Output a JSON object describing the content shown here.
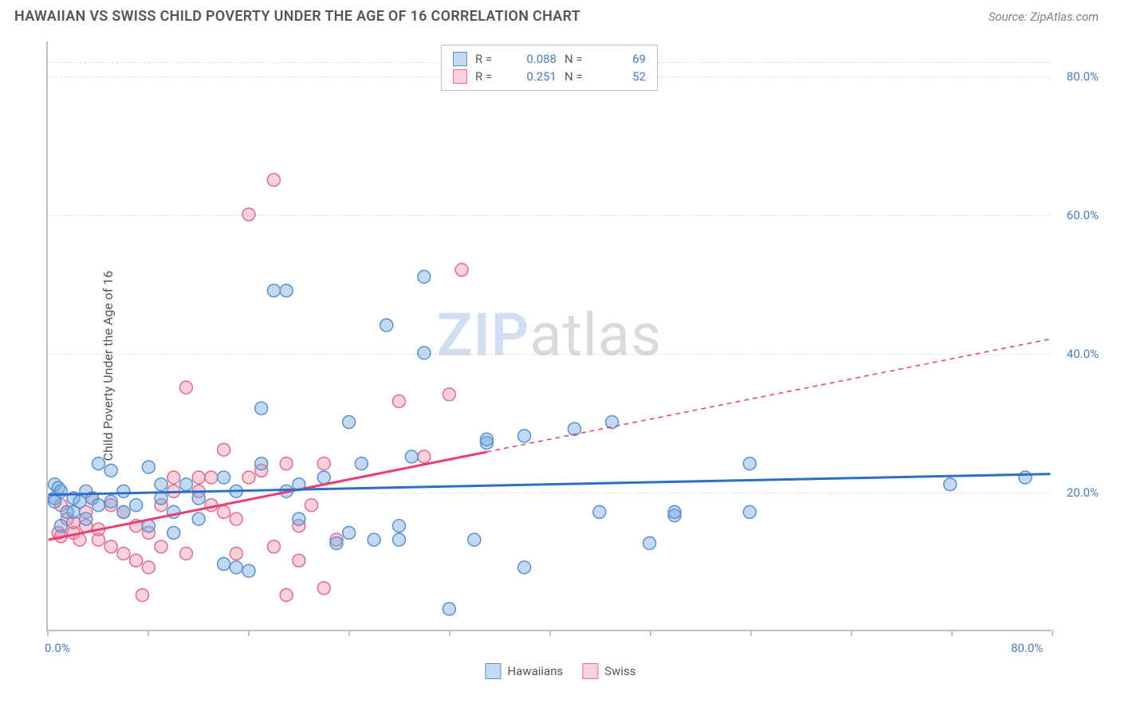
{
  "title": "HAWAIIAN VS SWISS CHILD POVERTY UNDER THE AGE OF 16 CORRELATION CHART",
  "source_label": "Source: ",
  "source_name": "ZipAtlas.com",
  "ylabel": "Child Poverty Under the Age of 16",
  "watermark": {
    "a": "ZIP",
    "b": "atlas"
  },
  "colors": {
    "blue_stroke": "#5b8fcf",
    "blue_fill": "rgba(120,170,225,0.45)",
    "blue_line": "#2d6fc7",
    "pink_stroke": "#e06b8b",
    "pink_fill": "rgba(240,140,170,0.40)",
    "pink_line": "#e73f75",
    "axis": "#bfbfbf",
    "grid": "#e0e0e0",
    "text": "#555555",
    "tick_text": "#4a7bb8"
  },
  "xlim": [
    0,
    80
  ],
  "ylim": [
    0,
    85
  ],
  "grid_y": [
    25,
    44,
    63,
    82
  ],
  "ytick_labels": [
    {
      "value": 20,
      "text": "20.0%"
    },
    {
      "value": 40,
      "text": "40.0%"
    },
    {
      "value": 60,
      "text": "60.0%"
    },
    {
      "value": 80,
      "text": "80.0%"
    }
  ],
  "xtick_positions": [
    0,
    8,
    16,
    24,
    32,
    40,
    48,
    56,
    64,
    72,
    80
  ],
  "xtick_labels": [
    {
      "value": 0,
      "text": "0.0%"
    },
    {
      "value": 80,
      "text": "80.0%"
    }
  ],
  "legend_top": {
    "rows": [
      {
        "swatch": "blue",
        "r_label": "R =",
        "r": "0.088",
        "n_label": "N =",
        "n": "69"
      },
      {
        "swatch": "pink",
        "r_label": "R =",
        "r": "0.251",
        "n_label": "N =",
        "n": "52"
      }
    ]
  },
  "legend_bottom": [
    {
      "swatch": "blue",
      "label": "Hawaiians"
    },
    {
      "swatch": "pink",
      "label": "Swiss"
    }
  ],
  "marker_radius": 8,
  "series": {
    "hawaiians": {
      "points": [
        [
          0.5,
          21
        ],
        [
          0.8,
          20.5
        ],
        [
          0.5,
          19
        ],
        [
          0.5,
          18.5
        ],
        [
          1,
          20
        ],
        [
          1,
          15
        ],
        [
          1.5,
          17
        ],
        [
          2,
          19
        ],
        [
          2,
          17
        ],
        [
          2.5,
          18.5
        ],
        [
          3,
          20
        ],
        [
          3,
          16
        ],
        [
          3.5,
          19
        ],
        [
          4,
          18
        ],
        [
          4,
          24
        ],
        [
          5,
          23
        ],
        [
          5,
          18.5
        ],
        [
          6,
          17
        ],
        [
          6,
          20
        ],
        [
          7,
          18
        ],
        [
          8,
          23.5
        ],
        [
          8,
          15
        ],
        [
          9,
          21
        ],
        [
          9,
          19
        ],
        [
          10,
          17
        ],
        [
          10,
          14
        ],
        [
          11,
          21
        ],
        [
          12,
          16
        ],
        [
          12,
          19
        ],
        [
          14,
          9.5
        ],
        [
          14,
          22
        ],
        [
          15,
          9
        ],
        [
          15,
          20
        ],
        [
          16,
          8.5
        ],
        [
          17,
          32
        ],
        [
          17,
          24
        ],
        [
          18,
          49
        ],
        [
          19,
          49
        ],
        [
          19,
          20
        ],
        [
          20,
          16
        ],
        [
          20,
          21
        ],
        [
          22,
          22
        ],
        [
          23,
          12.5
        ],
        [
          24,
          30
        ],
        [
          24,
          14
        ],
        [
          25,
          24
        ],
        [
          26,
          13
        ],
        [
          27,
          44
        ],
        [
          28,
          13
        ],
        [
          28,
          15
        ],
        [
          29,
          25
        ],
        [
          30,
          51
        ],
        [
          30,
          40
        ],
        [
          32,
          3
        ],
        [
          34,
          13
        ],
        [
          35,
          27
        ],
        [
          35,
          27.5
        ],
        [
          38,
          28
        ],
        [
          38,
          9
        ],
        [
          42,
          29
        ],
        [
          44,
          17
        ],
        [
          45,
          30
        ],
        [
          48,
          12.5
        ],
        [
          50,
          16.5
        ],
        [
          50,
          17
        ],
        [
          56,
          24
        ],
        [
          56,
          17
        ],
        [
          72,
          21
        ],
        [
          78,
          22
        ]
      ],
      "trend": {
        "y_at_x0": 19.5,
        "y_at_x80": 22.5
      },
      "solid_until": 80
    },
    "swiss": {
      "points": [
        [
          0.8,
          14
        ],
        [
          1,
          13.5
        ],
        [
          1,
          18
        ],
        [
          1.5,
          16
        ],
        [
          2,
          14
        ],
        [
          2,
          15.5
        ],
        [
          2.5,
          13
        ],
        [
          3,
          15
        ],
        [
          3,
          17
        ],
        [
          3.5,
          19
        ],
        [
          4,
          13
        ],
        [
          4,
          14.5
        ],
        [
          5,
          18
        ],
        [
          5,
          12
        ],
        [
          6,
          17
        ],
        [
          6,
          11
        ],
        [
          7,
          15
        ],
        [
          7,
          10
        ],
        [
          7.5,
          5
        ],
        [
          8,
          14
        ],
        [
          8,
          9
        ],
        [
          9,
          12
        ],
        [
          9,
          18
        ],
        [
          10,
          20
        ],
        [
          10,
          22
        ],
        [
          11,
          35
        ],
        [
          11,
          11
        ],
        [
          12,
          22
        ],
        [
          12,
          20
        ],
        [
          13,
          22
        ],
        [
          13,
          18
        ],
        [
          14,
          17
        ],
        [
          14,
          26
        ],
        [
          15,
          16
        ],
        [
          15,
          11
        ],
        [
          16,
          22
        ],
        [
          16,
          60
        ],
        [
          17,
          23
        ],
        [
          18,
          65
        ],
        [
          18,
          12
        ],
        [
          19,
          5
        ],
        [
          19,
          24
        ],
        [
          20,
          15
        ],
        [
          20,
          10
        ],
        [
          21,
          18
        ],
        [
          22,
          24
        ],
        [
          22,
          6
        ],
        [
          23,
          13
        ],
        [
          28,
          33
        ],
        [
          30,
          25
        ],
        [
          32,
          34
        ],
        [
          33,
          52
        ]
      ],
      "trend": {
        "y_at_x0": 13,
        "y_at_x80": 42
      },
      "solid_until": 35
    }
  }
}
